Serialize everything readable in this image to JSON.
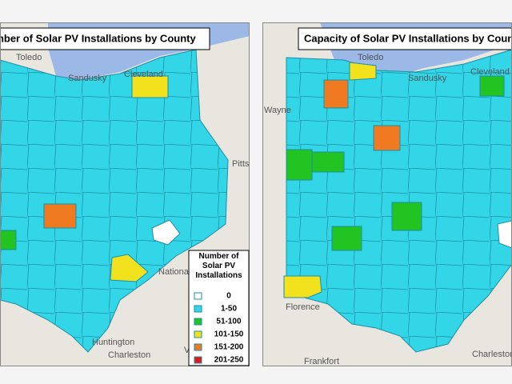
{
  "panels": [
    {
      "title": "Number of Solar PV Installations by County",
      "places": [
        "Toledo",
        "Sandusky",
        "Cleveland",
        "Pittsburgh",
        "Huntington",
        "Charleston",
        "VIRGINIA",
        "National Forest"
      ]
    },
    {
      "title": "Capacity of Solar PV Installations by County",
      "places": [
        "Toledo",
        "Sandusky",
        "Cleveland",
        "Wayne",
        "Florence",
        "Frankfort",
        "Charleston"
      ]
    }
  ],
  "legend": {
    "title": "Number of Solar PV Installations",
    "items": [
      {
        "label": "0",
        "color": "#ffffff"
      },
      {
        "label": "1-50",
        "color": "#33d6e6"
      },
      {
        "label": "51-100",
        "color": "#22c422"
      },
      {
        "label": "101-150",
        "color": "#f2e21e"
      },
      {
        "label": "151-200",
        "color": "#f07a22"
      },
      {
        "label": "201-250",
        "color": "#e01818"
      }
    ]
  }
}
